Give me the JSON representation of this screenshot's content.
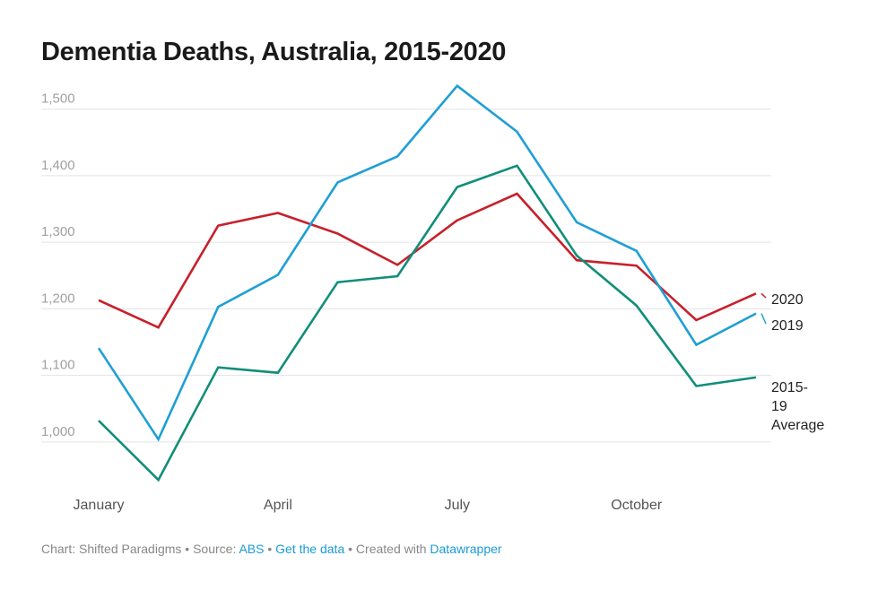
{
  "chart_data": {
    "type": "line",
    "title": "Dementia Deaths, Australia, 2015-2020",
    "x": [
      "January",
      "February",
      "March",
      "April",
      "May",
      "June",
      "July",
      "August",
      "September",
      "October",
      "November",
      "December"
    ],
    "x_tick_labels": [
      "January",
      "",
      "",
      "April",
      "",
      "",
      "July",
      "",
      "",
      "October",
      "",
      ""
    ],
    "ylim": [
      950,
      1540
    ],
    "y_ticks": [
      1000,
      1100,
      1200,
      1300,
      1400,
      1500
    ],
    "y_tick_labels": [
      "1,000",
      "1,100",
      "1,200",
      "1,300",
      "1,400",
      "1,500"
    ],
    "grid": true,
    "series": [
      {
        "name": "2020",
        "label_lines": [
          "2020"
        ],
        "color": "#c8202a",
        "values": [
          1213,
          1172,
          1325,
          1344,
          1313,
          1266,
          1333,
          1373,
          1273,
          1265,
          1183,
          1223
        ]
      },
      {
        "name": "2019",
        "label_lines": [
          "2019"
        ],
        "color": "#1f9fd4",
        "values": [
          1141,
          1004,
          1203,
          1251,
          1390,
          1429,
          1535,
          1466,
          1330,
          1287,
          1146,
          1193
        ]
      },
      {
        "name": "2015-19 Average",
        "label_lines": [
          "2015-",
          "19",
          "Average"
        ],
        "color": "#118e7a",
        "values": [
          1032,
          943,
          1112,
          1104,
          1240,
          1249,
          1383,
          1415,
          1280,
          1205,
          1084,
          1097
        ]
      }
    ]
  },
  "footer": {
    "chart_prefix": "Chart: Shifted Paradigms",
    "sep1": " • ",
    "source_prefix": "Source: ",
    "source_link": "ABS",
    "sep2": " • ",
    "get_data": "Get the data",
    "sep3": " • ",
    "created_prefix": "Created with ",
    "created_link": "Datawrapper"
  }
}
